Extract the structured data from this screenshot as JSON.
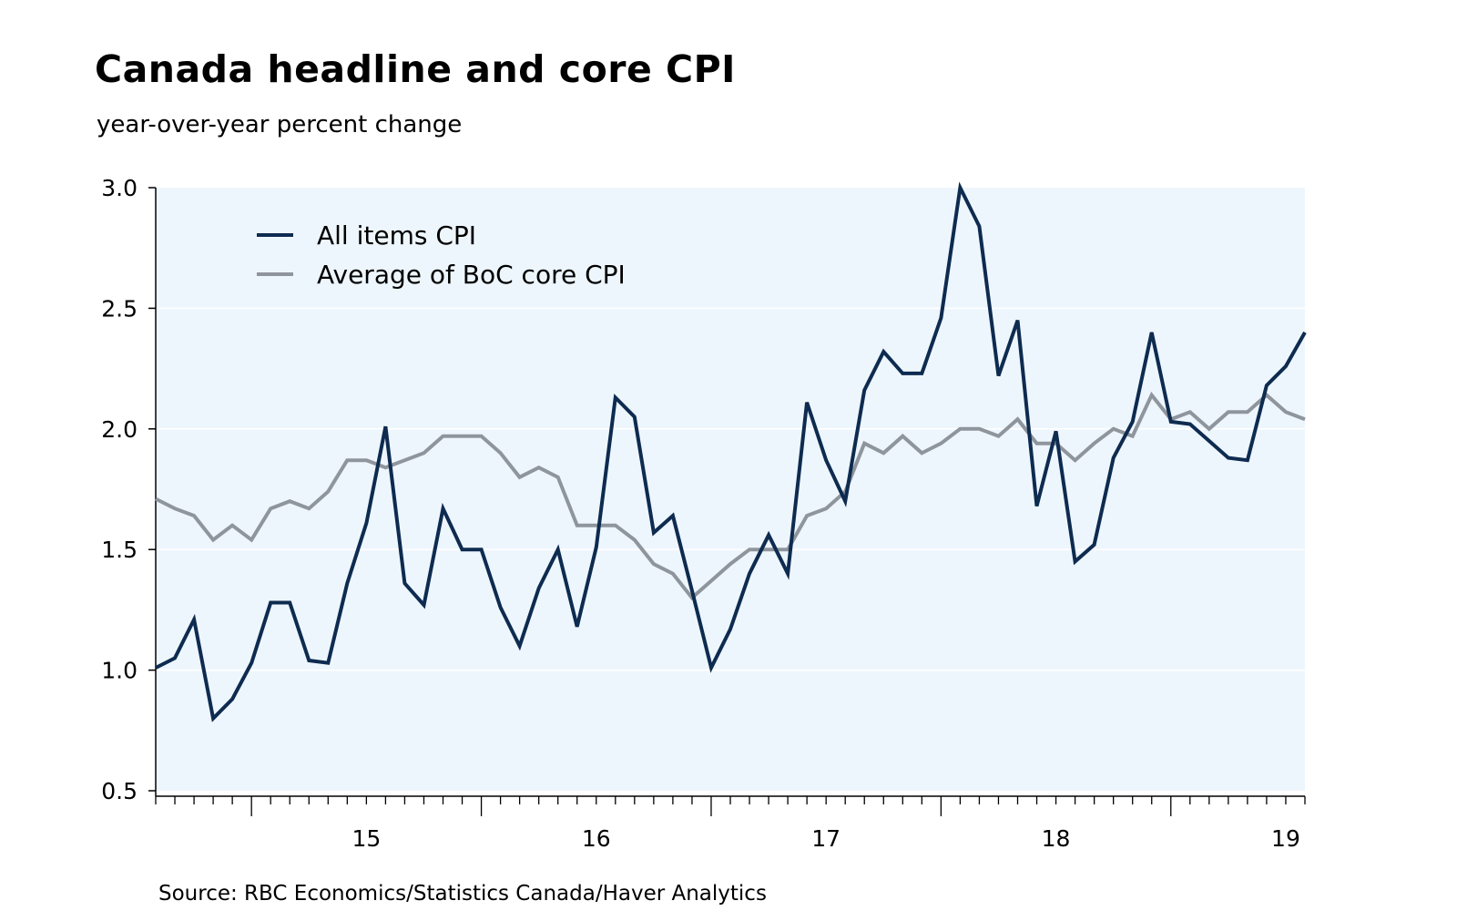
{
  "chart_data": {
    "type": "line",
    "title": "Canada headline and core CPI",
    "subtitle": "year-over-year percent change",
    "source": "Source:  RBC Economics/Statistics Canada/Haver Analytics",
    "xlabel": "",
    "ylabel": "",
    "x_start": "2014-08",
    "x_end": "2019-08",
    "ylim": [
      0.5,
      3.0
    ],
    "yticks": [
      "0.5",
      "1.0",
      "1.5",
      "2.0",
      "2.5",
      "3.0"
    ],
    "xtick_labels": [
      "15",
      "16",
      "17",
      "18",
      "19"
    ],
    "legend_position": "top-left",
    "colors": {
      "background": "#eef6fd",
      "headline": "#0e2b50",
      "core": "#8f959d"
    },
    "series": [
      {
        "name": "All items CPI",
        "values": [
          1.01,
          1.05,
          1.21,
          0.8,
          0.88,
          1.03,
          1.28,
          1.28,
          1.04,
          1.03,
          1.36,
          1.61,
          2.01,
          1.36,
          1.27,
          1.67,
          1.5,
          1.5,
          1.26,
          1.1,
          1.34,
          1.5,
          1.18,
          1.51,
          2.13,
          2.05,
          1.57,
          1.64,
          1.33,
          1.01,
          1.17,
          1.4,
          1.56,
          1.4,
          2.11,
          1.87,
          1.7,
          2.16,
          2.32,
          2.23,
          2.23,
          2.46,
          3.0,
          2.84,
          2.22,
          2.45,
          1.68,
          1.99,
          1.45,
          1.52,
          1.88,
          2.03,
          2.4,
          2.03,
          2.02,
          1.95,
          1.88,
          1.87,
          2.18,
          2.26,
          2.4
        ]
      },
      {
        "name": "Average of BoC core CPI",
        "values": [
          1.71,
          1.67,
          1.64,
          1.54,
          1.6,
          1.54,
          1.67,
          1.7,
          1.67,
          1.74,
          1.87,
          1.87,
          1.84,
          1.87,
          1.9,
          1.97,
          1.97,
          1.97,
          1.9,
          1.8,
          1.84,
          1.8,
          1.6,
          1.6,
          1.6,
          1.54,
          1.44,
          1.4,
          1.3,
          1.37,
          1.44,
          1.5,
          1.5,
          1.5,
          1.64,
          1.67,
          1.74,
          1.94,
          1.9,
          1.97,
          1.9,
          1.94,
          2.0,
          2.0,
          1.97,
          2.04,
          1.94,
          1.94,
          1.87,
          1.94,
          2.0,
          1.97,
          2.14,
          2.04,
          2.07,
          2.0,
          2.07,
          2.07,
          2.14,
          2.07,
          2.04
        ]
      }
    ]
  }
}
